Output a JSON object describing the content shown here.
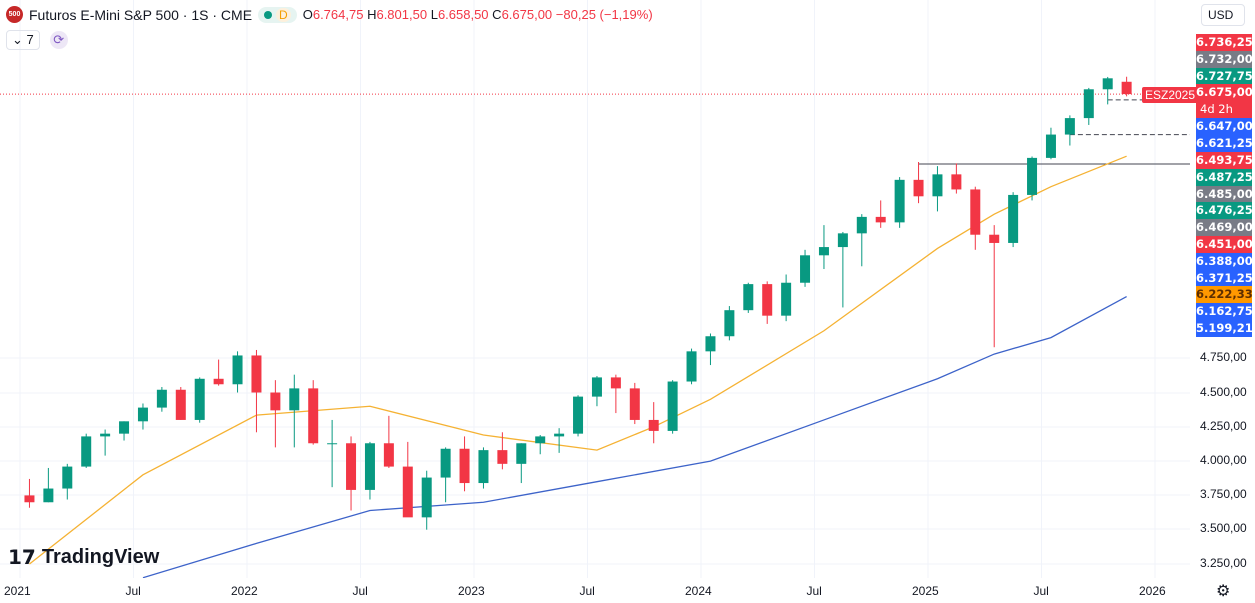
{
  "header": {
    "symbol_logo": "500",
    "title": "Futuros E-Mini S&P 500 · 1S · CME",
    "status_letter": "D",
    "ohlc": {
      "o_label": "O",
      "o": "6.764,75",
      "h_label": "H",
      "h": "6.801,50",
      "l_label": "L",
      "l": "6.658,50",
      "c_label": "C",
      "c": "6.675,00",
      "change": "−80,25 (−1,19%)"
    },
    "indicators_count": "7",
    "currency": "USD"
  },
  "contract_badge": "ESZ2025",
  "price_badges": [
    {
      "value": "6.736,25",
      "color": "#f23645"
    },
    {
      "value": "6.732,00",
      "color": "#787b86"
    },
    {
      "value": "6.727,75",
      "color": "#089981"
    },
    {
      "value": "6.675,00",
      "color": "#f23645",
      "sub": "4d 2h"
    },
    {
      "value": "6.647,00",
      "color": "#2962ff"
    },
    {
      "value": "6.621,25",
      "color": "#2962ff"
    },
    {
      "value": "6.493,75",
      "color": "#f23645"
    },
    {
      "value": "6.487,25",
      "color": "#089981"
    },
    {
      "value": "6.485,00",
      "color": "#787b86"
    },
    {
      "value": "6.476,25",
      "color": "#089981"
    },
    {
      "value": "6.469,00",
      "color": "#787b86"
    },
    {
      "value": "6.451,00",
      "color": "#f23645"
    },
    {
      "value": "6.388,00",
      "color": "#2962ff"
    },
    {
      "value": "6.371,25",
      "color": "#2962ff"
    },
    {
      "value": "6.222,33",
      "color": "#ff9800",
      "text": "#5d2e00"
    },
    {
      "value": "6.162,75",
      "color": "#2962ff"
    },
    {
      "value": "5.199,21",
      "color": "#2962ff"
    }
  ],
  "y_ticks": [
    "4.750,00",
    "4.500,00",
    "4.250,00",
    "4.000,00",
    "3.750,00",
    "3.500,00",
    "3.250,00"
  ],
  "x_ticks": [
    "2021",
    "Jul",
    "2022",
    "Jul",
    "2023",
    "Jul",
    "2024",
    "Jul",
    "2025",
    "Jul",
    "2026"
  ],
  "brand": "TradingView",
  "colors": {
    "up": "#089981",
    "down": "#f23645",
    "ma_fast": "#f5b233",
    "ma_slow": "#3d63c9"
  },
  "chart_data": {
    "type": "candlestick",
    "scale": "linear",
    "ylim": [
      3170,
      6900
    ],
    "grid": true,
    "start": "2021-01",
    "ohlc": [
      [
        3750,
        3870,
        3660,
        3700
      ],
      [
        3700,
        3950,
        3700,
        3800
      ],
      [
        3800,
        3980,
        3720,
        3960
      ],
      [
        3960,
        4200,
        3950,
        4180
      ],
      [
        4180,
        4230,
        4040,
        4200
      ],
      [
        4200,
        4290,
        4150,
        4290
      ],
      [
        4290,
        4420,
        4230,
        4390
      ],
      [
        4390,
        4540,
        4360,
        4520
      ],
      [
        4520,
        4540,
        4300,
        4300
      ],
      [
        4300,
        4610,
        4280,
        4600
      ],
      [
        4600,
        4740,
        4550,
        4560
      ],
      [
        4560,
        4800,
        4500,
        4770
      ],
      [
        4770,
        4810,
        4210,
        4500
      ],
      [
        4500,
        4590,
        4100,
        4370
      ],
      [
        4370,
        4630,
        4100,
        4530
      ],
      [
        4530,
        4590,
        4120,
        4130
      ],
      [
        4130,
        4300,
        3810,
        4130
      ],
      [
        4130,
        4180,
        3640,
        3790
      ],
      [
        3790,
        4140,
        3720,
        4130
      ],
      [
        4130,
        4330,
        3950,
        3960
      ],
      [
        3960,
        4140,
        3600,
        3590
      ],
      [
        3590,
        3930,
        3500,
        3880
      ],
      [
        3880,
        4100,
        3700,
        4090
      ],
      [
        4090,
        4180,
        3780,
        3840
      ],
      [
        3840,
        4100,
        3800,
        4080
      ],
      [
        4080,
        4210,
        3940,
        3980
      ],
      [
        3980,
        4130,
        3840,
        4130
      ],
      [
        4130,
        4190,
        4050,
        4180
      ],
      [
        4180,
        4240,
        4060,
        4200
      ],
      [
        4200,
        4480,
        4180,
        4470
      ],
      [
        4470,
        4620,
        4400,
        4610
      ],
      [
        4610,
        4630,
        4350,
        4530
      ],
      [
        4530,
        4570,
        4270,
        4300
      ],
      [
        4300,
        4430,
        4130,
        4220
      ],
      [
        4220,
        4590,
        4200,
        4580
      ],
      [
        4580,
        4820,
        4560,
        4800
      ],
      [
        4800,
        4930,
        4700,
        4910
      ],
      [
        4910,
        5130,
        4880,
        5100
      ],
      [
        5100,
        5300,
        5080,
        5290
      ],
      [
        5290,
        5310,
        5000,
        5060
      ],
      [
        5060,
        5360,
        5020,
        5300
      ],
      [
        5300,
        5540,
        5270,
        5500
      ],
      [
        5500,
        5720,
        5400,
        5560
      ],
      [
        5560,
        5670,
        5120,
        5660
      ],
      [
        5660,
        5800,
        5420,
        5780
      ],
      [
        5780,
        5900,
        5700,
        5740
      ],
      [
        5740,
        6070,
        5700,
        6050
      ],
      [
        6050,
        6180,
        5880,
        5930
      ],
      [
        5930,
        6150,
        5820,
        6090
      ],
      [
        6090,
        6170,
        5950,
        5980
      ],
      [
        5980,
        6000,
        5540,
        5650
      ],
      [
        5650,
        5720,
        4830,
        5590
      ],
      [
        5590,
        5960,
        5560,
        5940
      ],
      [
        5940,
        6220,
        5900,
        6210
      ],
      [
        6210,
        6430,
        6200,
        6380
      ],
      [
        6380,
        6520,
        6300,
        6500
      ],
      [
        6500,
        6720,
        6450,
        6710
      ],
      [
        6710,
        6800,
        6600,
        6790
      ],
      [
        6764.75,
        6801.5,
        6658.5,
        6675
      ]
    ],
    "ma_fast": [
      [
        0,
        3250
      ],
      [
        6,
        3900
      ],
      [
        12,
        4335
      ],
      [
        18,
        4400
      ],
      [
        24,
        4190
      ],
      [
        30,
        4080
      ],
      [
        33,
        4250
      ],
      [
        36,
        4450
      ],
      [
        42,
        4950
      ],
      [
        48,
        5550
      ],
      [
        51,
        5800
      ],
      [
        54,
        6000
      ],
      [
        58,
        6222.33
      ]
    ],
    "ma_slow": [
      [
        6,
        3150
      ],
      [
        12,
        3400
      ],
      [
        18,
        3640
      ],
      [
        24,
        3700
      ],
      [
        30,
        3850
      ],
      [
        36,
        4000
      ],
      [
        42,
        4300
      ],
      [
        48,
        4600
      ],
      [
        51,
        4780
      ],
      [
        54,
        4900
      ],
      [
        58,
        5199.21
      ]
    ],
    "levels": [
      {
        "price": 6165,
        "style": "solid",
        "from": 47
      },
      {
        "price": 6380,
        "style": "dashed",
        "from": 55
      },
      {
        "price": 6633,
        "style": "dashed",
        "from": 57
      }
    ],
    "last_price": 6675
  }
}
